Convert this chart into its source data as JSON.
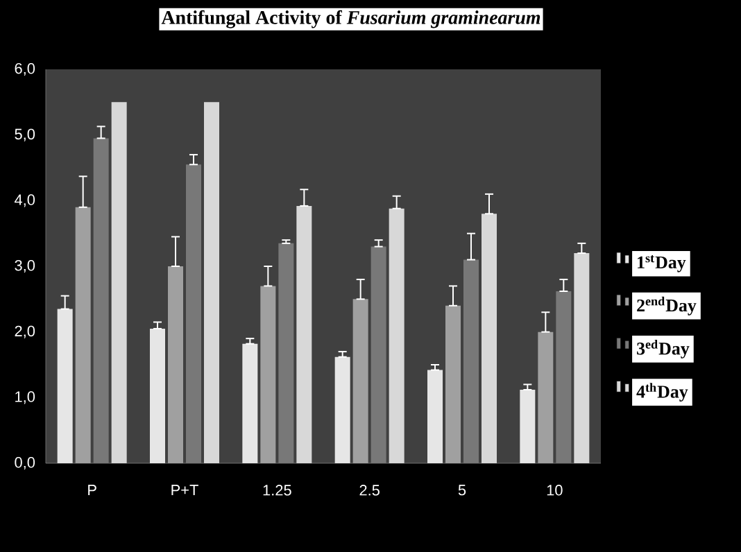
{
  "chart_data": {
    "type": "bar",
    "title": "Antifungal Activity of *Fusarium graminearum*",
    "categories": [
      "P",
      "P+T",
      "1.25",
      "2.5",
      "5",
      "10"
    ],
    "series": [
      {
        "name": "1$^{st}$Day",
        "color": "#e6e6e6",
        "values": [
          2.35,
          2.05,
          1.82,
          1.62,
          1.42,
          1.12
        ],
        "errors": [
          [
            2.35,
            2.55
          ],
          [
            2.05,
            2.15
          ],
          [
            1.82,
            1.9
          ],
          [
            1.62,
            1.7
          ],
          [
            1.42,
            1.5
          ],
          [
            1.12,
            1.2
          ]
        ]
      },
      {
        "name": "2$^{end}$Day",
        "color": "#a0a0a0",
        "values": [
          3.9,
          3.0,
          2.7,
          2.5,
          2.4,
          2.0
        ],
        "errors": [
          [
            3.9,
            4.37
          ],
          [
            3.0,
            3.45
          ],
          [
            2.7,
            3.0
          ],
          [
            2.5,
            2.8
          ],
          [
            2.4,
            2.7
          ],
          [
            2.0,
            2.3
          ]
        ]
      },
      {
        "name": "3$^{ed}$Day",
        "color": "#787878",
        "values": [
          4.95,
          4.55,
          3.35,
          3.3,
          3.1,
          2.62
        ],
        "errors": [
          [
            4.95,
            5.13
          ],
          [
            4.55,
            4.7
          ],
          [
            3.35,
            3.4
          ],
          [
            3.3,
            3.4
          ],
          [
            3.1,
            3.5
          ],
          [
            2.62,
            2.8
          ]
        ]
      },
      {
        "name": "4$^{th}$Day",
        "color": "#d8d8d8",
        "values": [
          5.5,
          5.5,
          3.92,
          3.88,
          3.8,
          3.2
        ],
        "errors": [
          null,
          null,
          [
            3.92,
            4.17
          ],
          [
            3.88,
            4.07
          ],
          [
            3.8,
            4.1
          ],
          [
            3.2,
            3.35
          ]
        ]
      }
    ],
    "ylim": [
      0,
      6
    ],
    "yticks": [
      {
        "value": 0,
        "label": "0,0"
      },
      {
        "value": 1,
        "label": "1,0"
      },
      {
        "value": 2,
        "label": "2,0"
      },
      {
        "value": 3,
        "label": "3,0"
      },
      {
        "value": 4,
        "label": "4,0"
      },
      {
        "value": 5,
        "label": "5,0"
      },
      {
        "value": 6,
        "label": "6,0"
      }
    ],
    "legend": "right",
    "grid": false
  }
}
